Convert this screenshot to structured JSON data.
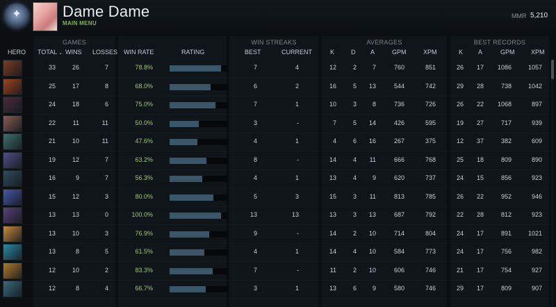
{
  "profile": {
    "name": "Dame Dame",
    "subtitle": "MAIN MENU",
    "mmr_label": "MMR",
    "mmr_value": "5,210"
  },
  "groups": {
    "games": "GAMES",
    "win_streaks": "WIN STREAKS",
    "averages": "AVERAGES",
    "best_records": "BEST RECORDS"
  },
  "headers": {
    "hero": "HERO",
    "total": "TOTAL",
    "wins": "WINS",
    "losses": "LOSSES",
    "win_rate": "WIN RATE",
    "rating": "RATING",
    "best": "BEST",
    "current": "CURRENT",
    "k": "K",
    "d": "D",
    "a": "A",
    "gpm": "GPM",
    "xpm": "XPM",
    "rk": "K",
    "ra": "A",
    "rgpm": "GPM",
    "rxpm": "XPM"
  },
  "rows": [
    {
      "total": "33",
      "wins": "26",
      "losses": "7",
      "win_rate": "78.8%",
      "rating": 0.88,
      "best": "7",
      "current": "4",
      "k": "12",
      "d": "2",
      "a": "7",
      "gpm": "760",
      "xpm": "851",
      "rk": "26",
      "ra": "17",
      "rgpm": "1086",
      "rxpm": "1057",
      "portrait": "#7a3b22"
    },
    {
      "total": "25",
      "wins": "17",
      "losses": "8",
      "win_rate": "68.0%",
      "rating": 0.7,
      "best": "6",
      "current": "2",
      "k": "16",
      "d": "5",
      "a": "13",
      "gpm": "544",
      "xpm": "742",
      "rk": "29",
      "ra": "28",
      "rgpm": "738",
      "rxpm": "1042",
      "portrait": "#a0431b"
    },
    {
      "total": "24",
      "wins": "18",
      "losses": "6",
      "win_rate": "75.0%",
      "rating": 0.78,
      "best": "7",
      "current": "1",
      "k": "10",
      "d": "3",
      "a": "8",
      "gpm": "736",
      "xpm": "726",
      "rk": "26",
      "ra": "22",
      "rgpm": "1068",
      "rxpm": "897",
      "portrait": "#4a2a3c"
    },
    {
      "total": "22",
      "wins": "11",
      "losses": "11",
      "win_rate": "50.0%",
      "rating": 0.5,
      "best": "3",
      "current": "-",
      "k": "7",
      "d": "5",
      "a": "14",
      "gpm": "426",
      "xpm": "595",
      "rk": "19",
      "ra": "27",
      "rgpm": "717",
      "rxpm": "939",
      "portrait": "#8a5a55"
    },
    {
      "total": "21",
      "wins": "10",
      "losses": "11",
      "win_rate": "47.6%",
      "rating": 0.48,
      "best": "4",
      "current": "1",
      "k": "4",
      "d": "6",
      "a": "16",
      "gpm": "267",
      "xpm": "375",
      "rk": "12",
      "ra": "37",
      "rgpm": "382",
      "rxpm": "609",
      "portrait": "#3f6f6a"
    },
    {
      "total": "19",
      "wins": "12",
      "losses": "7",
      "win_rate": "63.2%",
      "rating": 0.63,
      "best": "8",
      "current": "-",
      "k": "14",
      "d": "4",
      "a": "11",
      "gpm": "666",
      "xpm": "768",
      "rk": "25",
      "ra": "18",
      "rgpm": "809",
      "rxpm": "890",
      "portrait": "#4d4f86"
    },
    {
      "total": "16",
      "wins": "9",
      "losses": "7",
      "win_rate": "56.3%",
      "rating": 0.56,
      "best": "4",
      "current": "1",
      "k": "13",
      "d": "4",
      "a": "9",
      "gpm": "620",
      "xpm": "737",
      "rk": "24",
      "ra": "15",
      "rgpm": "856",
      "rxpm": "923",
      "portrait": "#2f4b5b"
    },
    {
      "total": "15",
      "wins": "12",
      "losses": "3",
      "win_rate": "80.0%",
      "rating": 0.75,
      "best": "5",
      "current": "3",
      "k": "15",
      "d": "3",
      "a": "11",
      "gpm": "813",
      "xpm": "785",
      "rk": "26",
      "ra": "22",
      "rgpm": "952",
      "rxpm": "946",
      "portrait": "#4458a8"
    },
    {
      "total": "13",
      "wins": "13",
      "losses": "0",
      "win_rate": "100.0%",
      "rating": 0.88,
      "best": "13",
      "current": "13",
      "k": "13",
      "d": "3",
      "a": "13",
      "gpm": "687",
      "xpm": "792",
      "rk": "22",
      "ra": "28",
      "rgpm": "812",
      "rxpm": "923",
      "portrait": "#5a3f7a"
    },
    {
      "total": "13",
      "wins": "10",
      "losses": "3",
      "win_rate": "76.9%",
      "rating": 0.68,
      "best": "9",
      "current": "-",
      "k": "14",
      "d": "2",
      "a": "10",
      "gpm": "714",
      "xpm": "804",
      "rk": "24",
      "ra": "17",
      "rgpm": "891",
      "rxpm": "1021",
      "portrait": "#c98a3a"
    },
    {
      "total": "13",
      "wins": "8",
      "losses": "5",
      "win_rate": "61.5%",
      "rating": 0.6,
      "best": "4",
      "current": "1",
      "k": "14",
      "d": "4",
      "a": "10",
      "gpm": "584",
      "xpm": "773",
      "rk": "24",
      "ra": "17",
      "rgpm": "756",
      "rxpm": "982",
      "portrait": "#2a8aa8"
    },
    {
      "total": "12",
      "wins": "10",
      "losses": "2",
      "win_rate": "83.3%",
      "rating": 0.74,
      "best": "7",
      "current": "-",
      "k": "11",
      "d": "2",
      "a": "10",
      "gpm": "606",
      "xpm": "746",
      "rk": "21",
      "ra": "17",
      "rgpm": "754",
      "rxpm": "927",
      "portrait": "#b07a2a"
    },
    {
      "total": "12",
      "wins": "8",
      "losses": "4",
      "win_rate": "66.7%",
      "rating": 0.62,
      "best": "3",
      "current": "1",
      "k": "13",
      "d": "6",
      "a": "9",
      "gpm": "580",
      "xpm": "746",
      "rk": "29",
      "ra": "17",
      "rgpm": "809",
      "rxpm": "907",
      "portrait": "#3a6a7a"
    }
  ]
}
